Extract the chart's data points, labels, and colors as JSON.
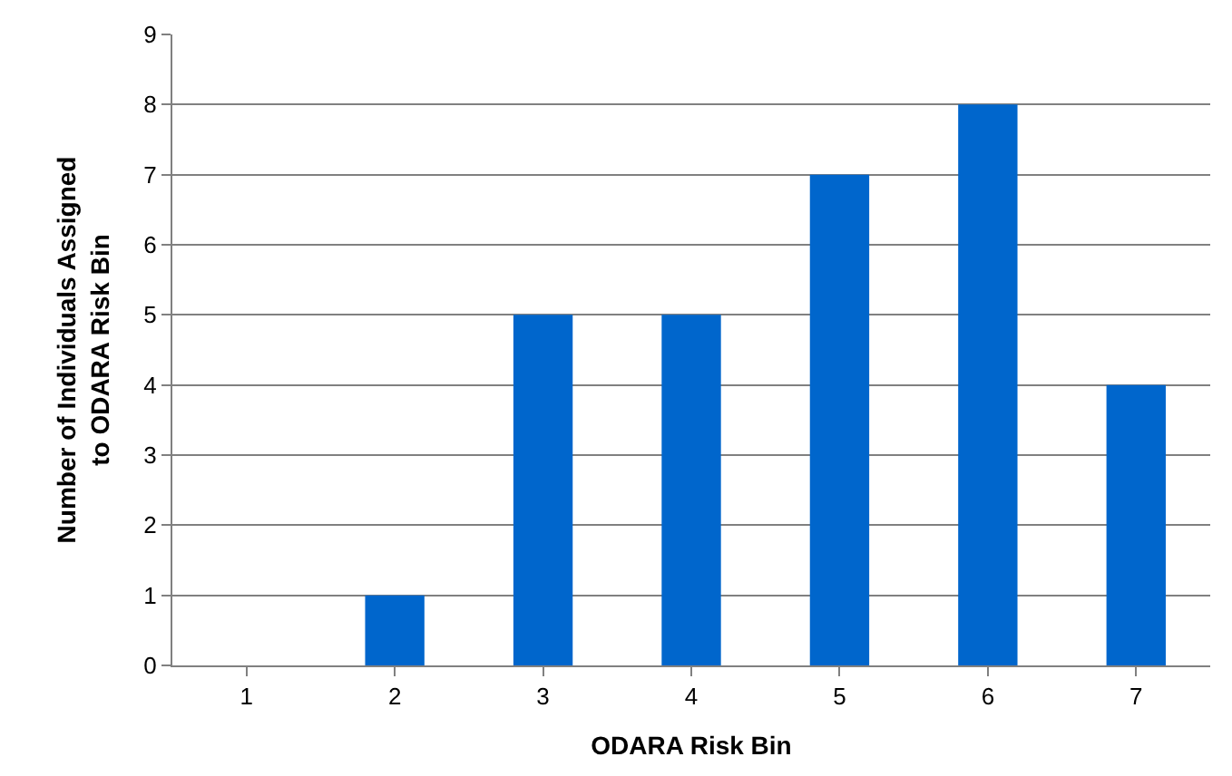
{
  "chart_data": {
    "type": "bar",
    "xlabel": "ODARA Risk Bin",
    "ylabel": "Number of Individuals Assigned to ODARA Risk Bin",
    "categories": [
      "1",
      "2",
      "3",
      "4",
      "5",
      "6",
      "7"
    ],
    "values": [
      0,
      1,
      5,
      5,
      7,
      8,
      4
    ],
    "color": "#0066cc",
    "ylim": [
      0,
      9
    ],
    "yticks": [
      0,
      1,
      2,
      3,
      4,
      5,
      6,
      7,
      8,
      9
    ],
    "grid": "y",
    "legend": false
  }
}
